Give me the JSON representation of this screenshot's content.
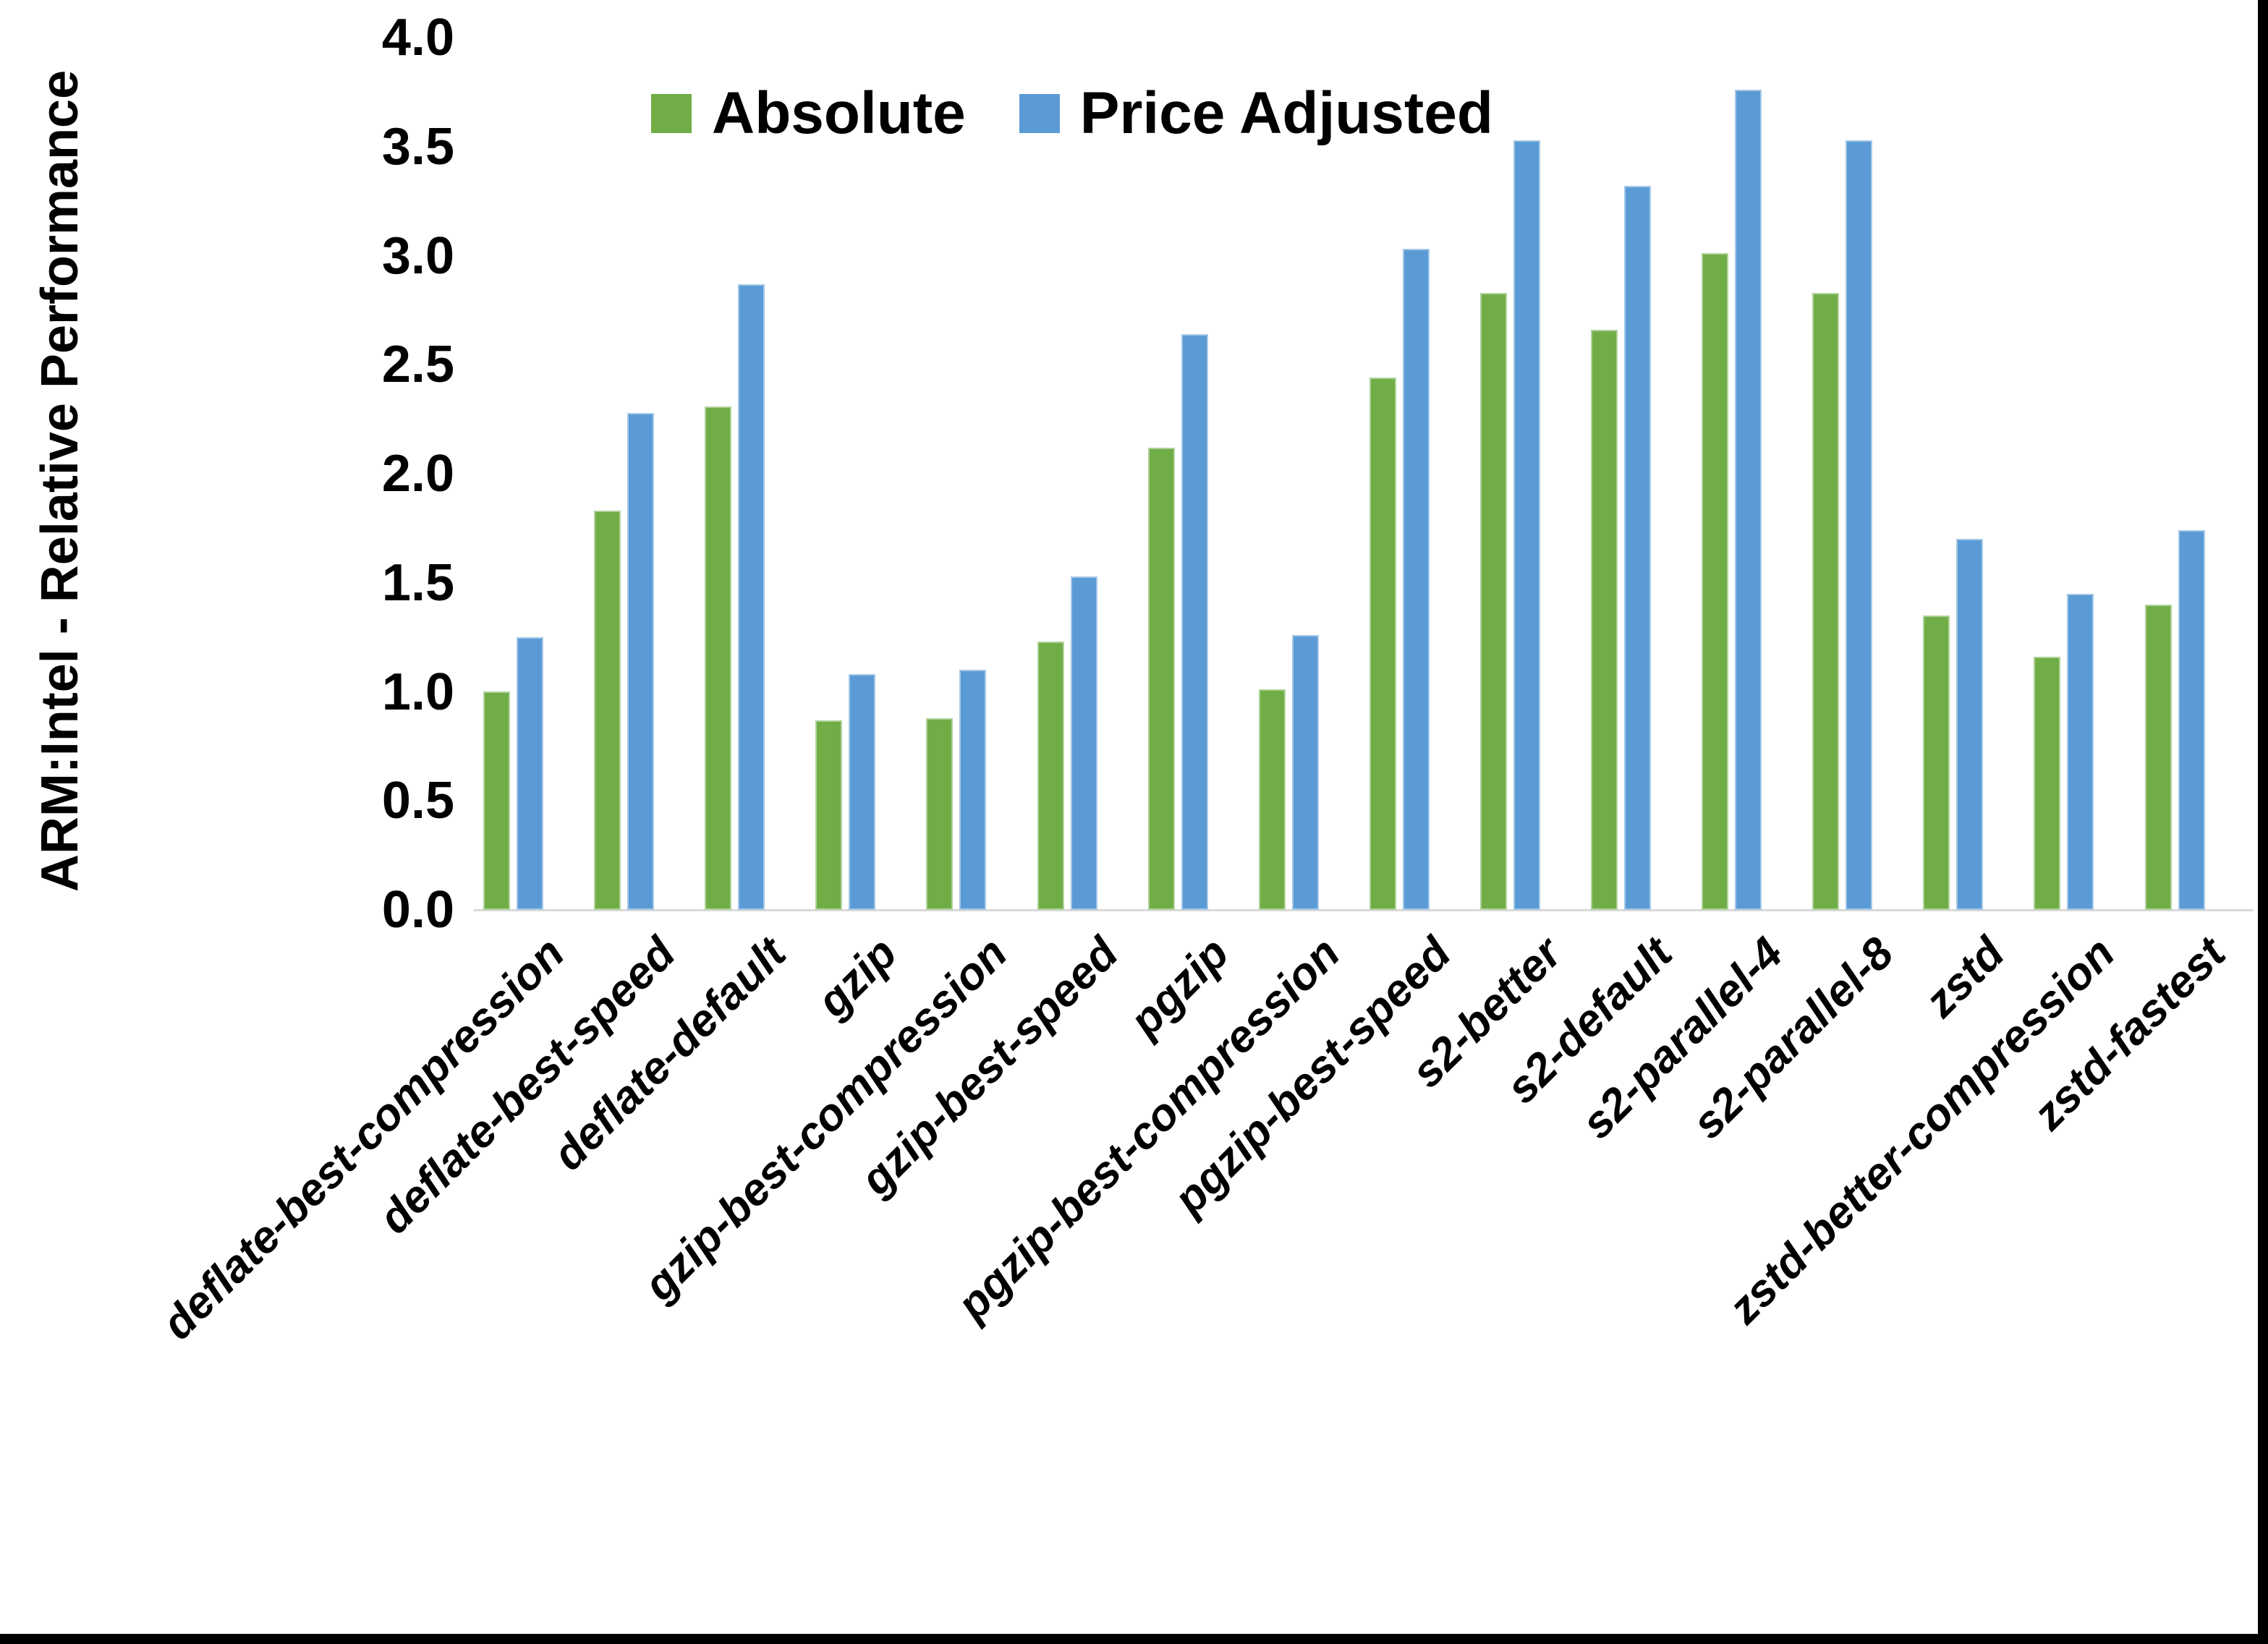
{
  "colors": {
    "absolute": "#70AD47",
    "price_adjusted": "#5B9BD5",
    "bar_edge": "rgba(255,255,255,0.45)",
    "axis_line": "#D9D9D9",
    "text": "#000000",
    "frame": "#000000",
    "background": "#FFFFFF"
  },
  "y_axis": {
    "title": "ARM:Intel - Relative Performance",
    "tick_labels": [
      "0.0",
      "0.5",
      "1.0",
      "1.5",
      "2.0",
      "2.5",
      "3.0",
      "3.5",
      "4.0"
    ],
    "min": 0,
    "max": 4
  },
  "legend": {
    "items": [
      {
        "label": "Absolute",
        "color_key": "absolute"
      },
      {
        "label": "Price Adjusted",
        "color_key": "price_adjusted"
      }
    ]
  },
  "chart_data": {
    "type": "bar",
    "title": "",
    "xlabel": "",
    "ylabel": "ARM:Intel - Relative Performance",
    "ylim": [
      0,
      4
    ],
    "ytick_step": 0.5,
    "grid": false,
    "legend_position": "top-center",
    "categories": [
      "deflate-best-compression",
      "deflate-best-speed",
      "deflate-default",
      "gzip",
      "gzip-best-compression",
      "gzip-best-speed",
      "pgzip",
      "pgzip-best-compression",
      "pgzip-best-speed",
      "s2-better",
      "s2-default",
      "s2-parallel-4",
      "s2-parallel-8",
      "zstd",
      "zstd-better-compression",
      "zstd-fastest"
    ],
    "series": [
      {
        "name": "Absolute",
        "color": "#70AD47",
        "values": [
          1.0,
          1.83,
          2.31,
          0.87,
          0.88,
          1.23,
          2.12,
          1.01,
          2.44,
          2.83,
          2.66,
          3.01,
          2.83,
          1.35,
          1.16,
          1.4
        ]
      },
      {
        "name": "Price Adjusted",
        "color": "#5B9BD5",
        "values": [
          1.25,
          2.28,
          2.87,
          1.08,
          1.1,
          1.53,
          2.64,
          1.26,
          3.03,
          3.53,
          3.32,
          3.76,
          3.53,
          1.7,
          1.45,
          1.74
        ]
      }
    ]
  }
}
